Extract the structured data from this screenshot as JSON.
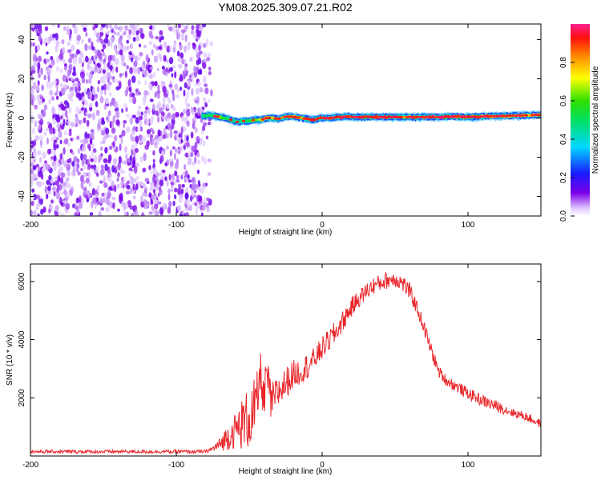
{
  "title": "YM08.2025.309.07.21.R02",
  "colors": {
    "snr_line": "#e8262a",
    "frame": "#000000",
    "background": "#ffffff"
  },
  "chart_data": [
    {
      "type": "heatmap",
      "name": "spectrogram",
      "xlabel": "Height of straight line (km)",
      "ylabel": "Frequency (Hz)",
      "xlim": [
        -200,
        150
      ],
      "ylim": [
        -50,
        48
      ],
      "xticks": [
        -200,
        -100,
        0,
        100
      ],
      "xtick_labels": [
        "-200",
        "-100",
        "0",
        "100"
      ],
      "yticks": [
        -40,
        -20,
        0,
        20,
        40
      ],
      "ytick_labels": [
        "-40",
        "-20",
        "0",
        "20",
        "40"
      ],
      "noise_region_x": [
        -200,
        -80
      ],
      "trace": {
        "x": [
          -82,
          -78,
          -74,
          -70,
          -66,
          -62,
          -58,
          -54,
          -50,
          -46,
          -42,
          -38,
          -34,
          -30,
          -26,
          -22,
          -18,
          -14,
          -10,
          -6,
          -2,
          2,
          6,
          10,
          14,
          18,
          22,
          26,
          30,
          40,
          50,
          60,
          70,
          80,
          90,
          100,
          110,
          120,
          130,
          140,
          150
        ],
        "freq": [
          1.0,
          1.5,
          1.0,
          0.5,
          0,
          -1.0,
          -2.0,
          -1.5,
          -1.5,
          -1.0,
          -1.0,
          0,
          0,
          -0.5,
          0.5,
          0.8,
          0.5,
          0,
          -0.5,
          -1.0,
          0,
          0,
          0,
          0.5,
          0.6,
          0.8,
          0.5,
          0.5,
          0.6,
          0.5,
          0.5,
          0.5,
          0.5,
          0.5,
          0.8,
          0.5,
          0.8,
          1.0,
          1.2,
          1.4,
          1.6
        ],
        "amplitude": [
          0.5,
          0.6,
          0.6,
          0.7,
          0.6,
          0.55,
          0.5,
          0.55,
          0.6,
          0.7,
          0.8,
          0.85,
          0.8,
          0.85,
          0.9,
          0.9,
          0.85,
          0.9,
          0.95,
          0.95,
          1.0,
          1.0,
          1.0,
          0.95,
          1.0,
          1.0,
          0.95,
          1.0,
          1.0,
          1.0,
          1.0,
          0.95,
          1.0,
          1.0,
          0.95,
          0.95,
          0.9,
          0.9,
          0.85,
          0.85,
          0.85
        ]
      },
      "colorbar": {
        "label": "Normalized spectral amplitude",
        "range": [
          0,
          1
        ],
        "ticks": [
          0.0,
          0.2,
          0.4,
          0.6,
          0.8
        ],
        "tick_labels": [
          "0.0",
          "0.2",
          "0.4",
          "0.6",
          "0.8"
        ]
      }
    },
    {
      "type": "line",
      "name": "snr",
      "xlabel": "Height of straight line (km)",
      "ylabel": "SNR (10 * v/v)",
      "xlim": [
        -200,
        150
      ],
      "ylim": [
        0,
        6600
      ],
      "xticks": [
        -200,
        -100,
        0,
        100
      ],
      "xtick_labels": [
        "-200",
        "-100",
        "0",
        "100"
      ],
      "yticks": [
        2000,
        4000,
        6000
      ],
      "ytick_labels": [
        "2000",
        "4000",
        "6000"
      ],
      "series": [
        {
          "name": "SNR",
          "x": [
            -200,
            -150,
            -100,
            -80,
            -75,
            -70,
            -65,
            -60,
            -55,
            -50,
            -45,
            -42,
            -40,
            -38,
            -35,
            -30,
            -25,
            -20,
            -15,
            -10,
            -5,
            0,
            5,
            10,
            15,
            20,
            25,
            30,
            35,
            40,
            45,
            50,
            55,
            60,
            65,
            70,
            75,
            80,
            85,
            90,
            95,
            100,
            110,
            120,
            130,
            140,
            150
          ],
          "y": [
            150,
            150,
            150,
            150,
            250,
            400,
            650,
            850,
            1100,
            1300,
            1600,
            3000,
            1700,
            2900,
            1800,
            2200,
            2500,
            2800,
            2900,
            3100,
            3350,
            3700,
            4000,
            4300,
            4700,
            5100,
            5400,
            5650,
            5850,
            5950,
            6050,
            6100,
            5950,
            5650,
            5100,
            4400,
            3600,
            2900,
            2600,
            2450,
            2300,
            2150,
            1900,
            1700,
            1500,
            1350,
            1100
          ],
          "noise_amplitude": [
            60,
            60,
            60,
            60,
            100,
            250,
            450,
            600,
            900,
            1100,
            1200,
            600,
            1000,
            600,
            700,
            600,
            550,
            500,
            450,
            450,
            400,
            400,
            400,
            400,
            350,
            350,
            300,
            300,
            300,
            300,
            300,
            300,
            300,
            300,
            250,
            250,
            250,
            200,
            200,
            200,
            200,
            200,
            200,
            200,
            150,
            150,
            150
          ]
        }
      ]
    }
  ]
}
